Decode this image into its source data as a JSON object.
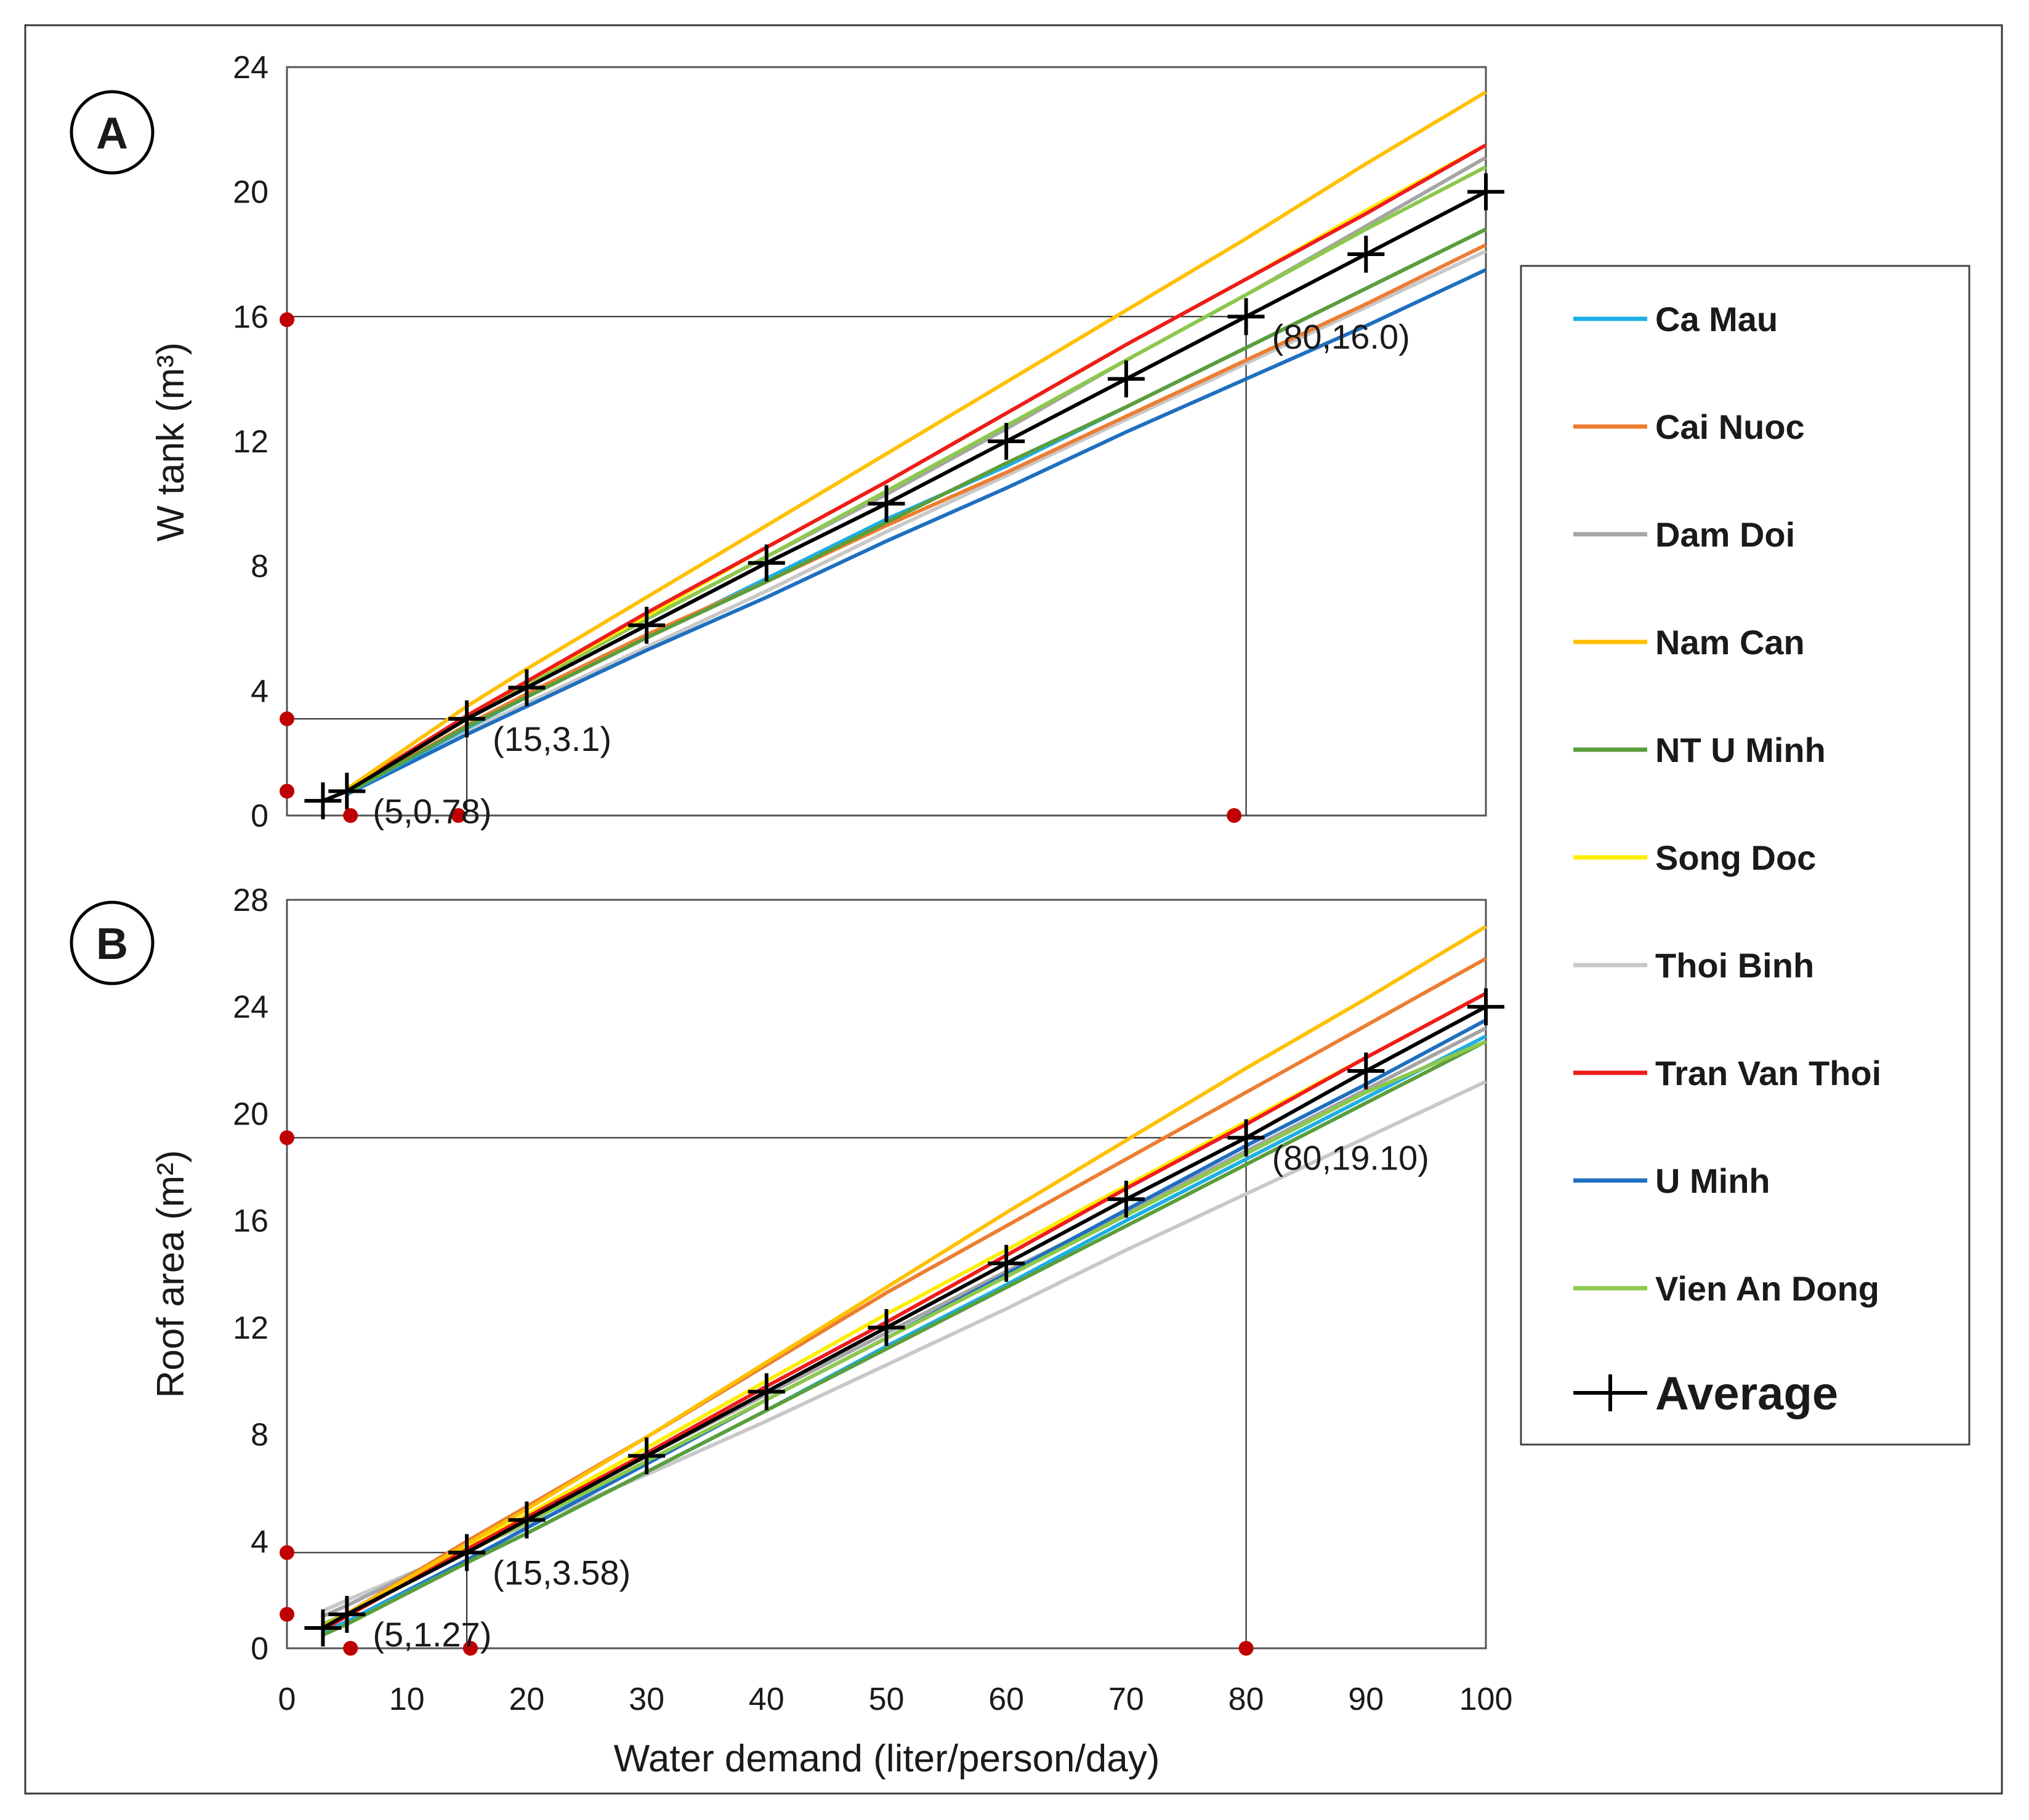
{
  "x_axis": {
    "label": "Water demand (liter/person/day)",
    "ticks": [
      "0",
      "10",
      "20",
      "30",
      "40",
      "50",
      "60",
      "70",
      "80",
      "90",
      "100"
    ]
  },
  "legend": {
    "items": [
      {
        "name": "Ca Mau",
        "color": "#1eaee6"
      },
      {
        "name": "Cai Nuoc",
        "color": "#ed7d31"
      },
      {
        "name": "Dam Doi",
        "color": "#a5a5a5"
      },
      {
        "name": "Nam Can",
        "color": "#ffc000"
      },
      {
        "name": "NT U Minh",
        "color": "#5b9e3c"
      },
      {
        "name": "Song Doc",
        "color": "#ffee00"
      },
      {
        "name": "Thoi Binh",
        "color": "#c8c8c8"
      },
      {
        "name": "Tran Van Thoi",
        "color": "#ee1c1c"
      },
      {
        "name": "U Minh",
        "color": "#1f6fc0"
      },
      {
        "name": "Vien An Dong",
        "color": "#8cc84b"
      }
    ],
    "average_label": "Average"
  },
  "chart_data": [
    {
      "type": "line",
      "panel": "A",
      "ylabel": "W tank (m³)",
      "xlim": [
        0,
        100
      ],
      "ylim": [
        0,
        24
      ],
      "yticks": [
        "0",
        "4",
        "8",
        "12",
        "16",
        "20",
        "24"
      ],
      "x": [
        5,
        15,
        20,
        30,
        40,
        50,
        60,
        70,
        80,
        90,
        100
      ],
      "series": [
        {
          "name": "Ca Mau",
          "color": "#1eaee6",
          "values": [
            0.7,
            2.8,
            3.8,
            5.7,
            7.6,
            9.5,
            11.2,
            13.1,
            15.0,
            16.9,
            18.8
          ]
        },
        {
          "name": "Cai Nuoc",
          "color": "#ed7d31",
          "values": [
            0.72,
            2.9,
            3.9,
            5.8,
            7.5,
            9.3,
            11.0,
            12.8,
            14.6,
            16.4,
            18.3
          ]
        },
        {
          "name": "Dam Doi",
          "color": "#a5a5a5",
          "values": [
            0.8,
            3.1,
            4.2,
            6.3,
            8.3,
            10.3,
            12.4,
            14.6,
            16.7,
            18.9,
            21.1
          ]
        },
        {
          "name": "Nam Can",
          "color": "#ffc000",
          "values": [
            0.85,
            3.5,
            4.7,
            7.0,
            9.3,
            11.6,
            13.9,
            16.2,
            18.5,
            20.9,
            23.2
          ]
        },
        {
          "name": "NT U Minh",
          "color": "#5b9e3c",
          "values": [
            0.72,
            2.85,
            3.8,
            5.7,
            7.5,
            9.4,
            11.3,
            13.1,
            15.0,
            16.9,
            18.8
          ]
        },
        {
          "name": "Song Doc",
          "color": "#ffee00",
          "values": [
            0.8,
            3.2,
            4.3,
            6.4,
            8.6,
            10.7,
            12.9,
            15.1,
            17.2,
            19.4,
            21.5
          ]
        },
        {
          "name": "Thoi Binh",
          "color": "#c8c8c8",
          "values": [
            0.7,
            2.7,
            3.6,
            5.4,
            7.2,
            9.1,
            10.9,
            12.7,
            14.5,
            16.3,
            18.1
          ]
        },
        {
          "name": "Tran Van Thoi",
          "color": "#ee1c1c",
          "values": [
            0.8,
            3.2,
            4.3,
            6.5,
            8.6,
            10.7,
            12.9,
            15.1,
            17.2,
            19.3,
            21.5
          ]
        },
        {
          "name": "U Minh",
          "color": "#1f6fc0",
          "values": [
            0.68,
            2.6,
            3.5,
            5.3,
            7.0,
            8.8,
            10.5,
            12.3,
            14.0,
            15.7,
            17.5
          ]
        },
        {
          "name": "Vien An Dong",
          "color": "#8cc84b",
          "values": [
            0.78,
            3.1,
            4.2,
            6.3,
            8.3,
            10.4,
            12.5,
            14.6,
            16.7,
            18.8,
            20.8
          ]
        }
      ],
      "average": {
        "name": "Average",
        "x": [
          3,
          5,
          15,
          20,
          30,
          40,
          50,
          60,
          70,
          80,
          90,
          100
        ],
        "values": [
          0.47,
          0.78,
          3.1,
          4.1,
          6.1,
          8.1,
          10.0,
          12.0,
          14.0,
          16.0,
          18.0,
          20.0
        ]
      },
      "annotations": [
        {
          "x": 5,
          "y": 0.78,
          "label": "(5,0.78)"
        },
        {
          "x": 15,
          "y": 3.1,
          "label": "(15,3.1)"
        },
        {
          "x": 80,
          "y": 16.0,
          "label": "(80,16.0)"
        }
      ],
      "reference_lines": [
        {
          "x": 15,
          "y": 3.1
        },
        {
          "x": 80,
          "y": 16.0
        }
      ],
      "markers_x": [
        5.3,
        14.3,
        79.0
      ],
      "markers_y": [
        0.78,
        3.1,
        15.9
      ]
    },
    {
      "type": "line",
      "panel": "B",
      "ylabel": "Roof area (m²)",
      "xlim": [
        0,
        100
      ],
      "ylim": [
        0,
        28
      ],
      "yticks": [
        "0",
        "4",
        "8",
        "12",
        "16",
        "20",
        "24",
        "28"
      ],
      "x": [
        3,
        5,
        15,
        20,
        30,
        40,
        50,
        60,
        70,
        80,
        90,
        100
      ],
      "series": [
        {
          "name": "Ca Mau",
          "color": "#1eaee6",
          "values": [
            0.6,
            1.0,
            3.2,
            4.3,
            6.6,
            8.9,
            11.3,
            13.6,
            16.0,
            18.3,
            20.6,
            22.9
          ]
        },
        {
          "name": "Cai Nuoc",
          "color": "#ed7d31",
          "values": [
            0.8,
            1.3,
            4.0,
            5.3,
            7.9,
            10.6,
            13.3,
            15.8,
            18.3,
            20.8,
            23.3,
            25.8
          ]
        },
        {
          "name": "Dam Doi",
          "color": "#a5a5a5",
          "values": [
            1.2,
            1.6,
            3.8,
            4.9,
            7.2,
            9.5,
            11.8,
            14.1,
            16.3,
            18.6,
            20.9,
            23.2
          ]
        },
        {
          "name": "Nam Can",
          "color": "#ffc000",
          "values": [
            0.8,
            1.3,
            3.9,
            5.2,
            7.9,
            10.7,
            13.5,
            16.3,
            19.0,
            21.7,
            24.3,
            27.0
          ]
        },
        {
          "name": "NT U Minh",
          "color": "#5b9e3c",
          "values": [
            0.5,
            0.9,
            3.2,
            4.3,
            6.6,
            8.9,
            11.2,
            13.5,
            15.8,
            18.1,
            20.4,
            22.7
          ]
        },
        {
          "name": "Song Doc",
          "color": "#ffee00",
          "values": [
            0.7,
            1.2,
            3.8,
            5.0,
            7.5,
            10.0,
            12.5,
            14.9,
            17.3,
            19.7,
            22.1,
            24.5
          ]
        },
        {
          "name": "Thoi Binh",
          "color": "#c8c8c8",
          "values": [
            1.4,
            1.8,
            3.7,
            4.6,
            6.5,
            8.5,
            10.6,
            12.7,
            14.9,
            17.0,
            19.1,
            21.2
          ]
        },
        {
          "name": "Tran Van Thoi",
          "color": "#ee1c1c",
          "values": [
            0.7,
            1.2,
            3.7,
            4.9,
            7.3,
            9.8,
            12.2,
            14.7,
            17.2,
            19.6,
            22.1,
            24.5
          ]
        },
        {
          "name": "U Minh",
          "color": "#1f6fc0",
          "values": [
            0.6,
            1.0,
            3.3,
            4.5,
            6.9,
            9.3,
            11.6,
            14.0,
            16.4,
            18.8,
            21.1,
            23.5
          ]
        },
        {
          "name": "Vien An Dong",
          "color": "#8cc84b",
          "values": [
            0.9,
            1.3,
            3.6,
            4.7,
            7.0,
            9.3,
            11.6,
            13.9,
            16.2,
            18.5,
            20.8,
            22.7
          ]
        }
      ],
      "average": {
        "name": "Average",
        "x": [
          3,
          5,
          15,
          20,
          30,
          40,
          50,
          60,
          70,
          80,
          90,
          100
        ],
        "values": [
          0.76,
          1.27,
          3.58,
          4.8,
          7.2,
          9.6,
          12.0,
          14.4,
          16.8,
          19.1,
          21.6,
          24.0
        ]
      },
      "annotations": [
        {
          "x": 5,
          "y": 1.27,
          "label": "(5,1.27)"
        },
        {
          "x": 15,
          "y": 3.58,
          "label": "(15,3.58)"
        },
        {
          "x": 80,
          "y": 19.1,
          "label": "(80,19.10)"
        }
      ],
      "reference_lines": [
        {
          "x": 15,
          "y": 3.58
        },
        {
          "x": 80,
          "y": 19.1
        }
      ],
      "markers_x": [
        5.3,
        15.3,
        80.0
      ],
      "markers_y": [
        1.27,
        3.58,
        19.1
      ]
    }
  ]
}
